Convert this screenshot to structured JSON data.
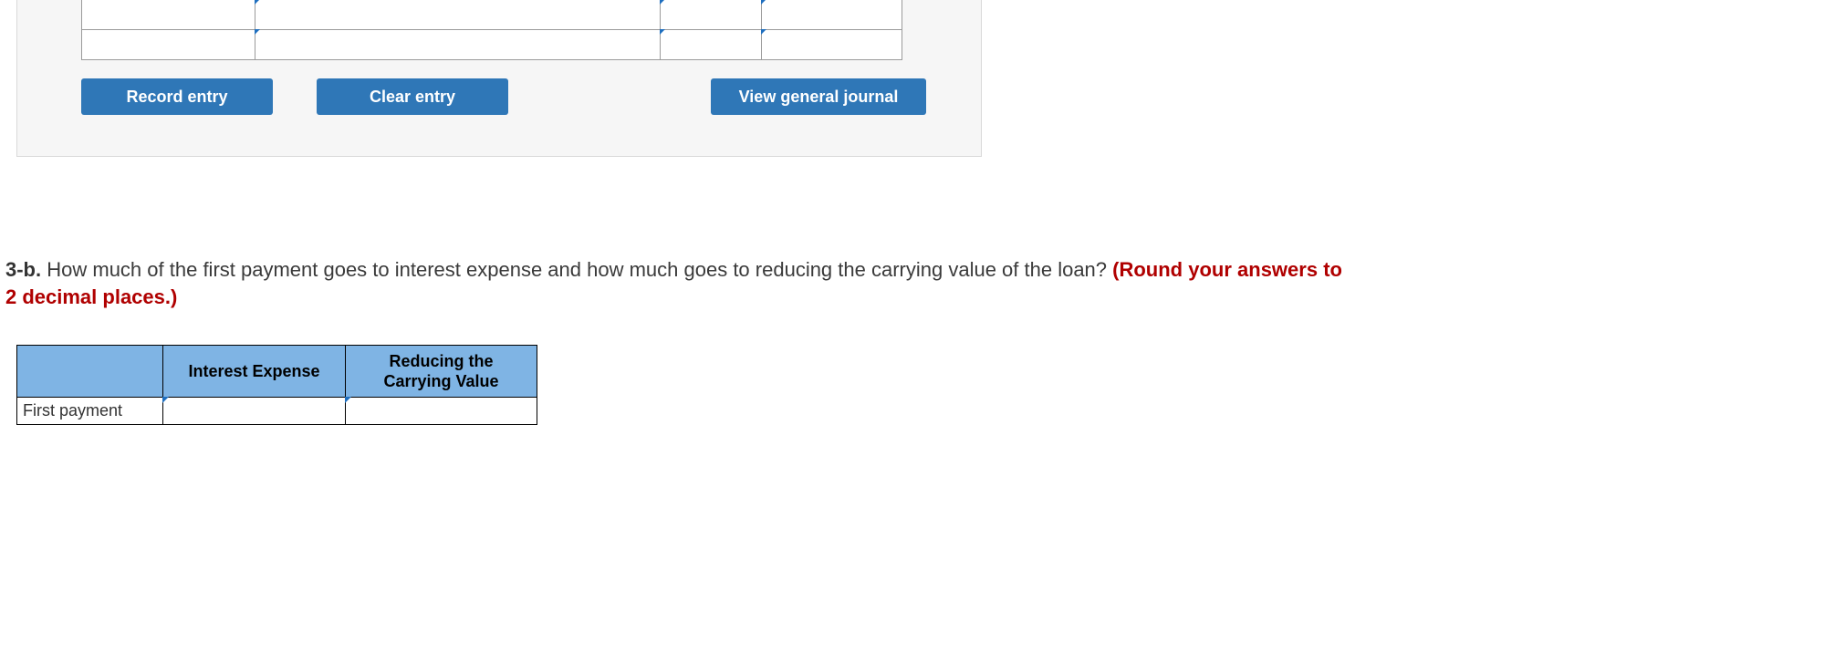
{
  "colors": {
    "button_bg": "#2f77b7",
    "button_text": "#ffffff",
    "card_bg": "#f6f6f6",
    "card_border": "#d9d9d9",
    "grid_border": "#9b9b9b",
    "table_header_bg": "#7fb4e4",
    "table_border": "#000000",
    "hint_text": "#b00000",
    "tri_marker": "#1f6fbf"
  },
  "journal": {
    "buttons": {
      "record": "Record entry",
      "clear": "Clear entry",
      "view": "View general journal"
    }
  },
  "question": {
    "label": "3-b.",
    "text": "How much of the first payment goes to interest expense and how much goes to reducing the carrying value of the loan?",
    "hint": "(Round your answers to 2 decimal places.)"
  },
  "answer_table": {
    "headers": {
      "blank": "",
      "interest_expense": "Interest Expense",
      "reducing_carrying_value": "Reducing the Carrying Value"
    },
    "rows": [
      {
        "label": "First payment",
        "interest_expense": "",
        "reducing_carrying_value": ""
      }
    ]
  }
}
